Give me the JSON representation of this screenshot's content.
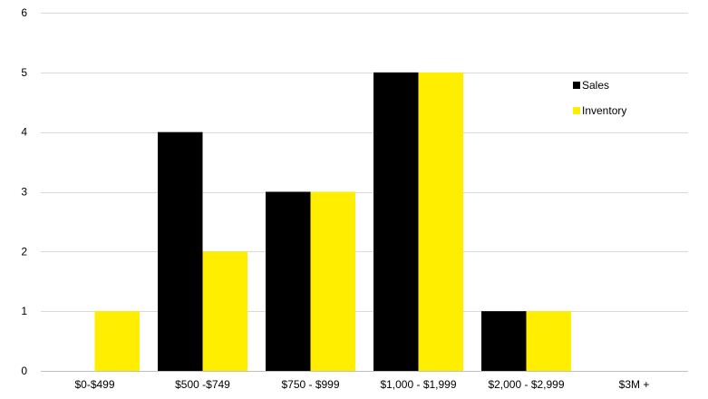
{
  "chart_data": {
    "type": "bar",
    "categories": [
      "$0-$499",
      "$500 -$749",
      "$750 - $999",
      "$1,000 - $1,999",
      "$2,000 - $2,999",
      "$3M +"
    ],
    "series": [
      {
        "name": "Sales",
        "color": "#000000",
        "values": [
          0,
          4,
          3,
          5,
          1,
          0
        ]
      },
      {
        "name": "Inventory",
        "color": "#ffee00",
        "values": [
          1,
          2,
          3,
          5,
          1,
          0
        ]
      }
    ],
    "title": "",
    "xlabel": "",
    "ylabel": "",
    "ylim": [
      0,
      6
    ],
    "yticks": [
      0,
      1,
      2,
      3,
      4,
      5,
      6
    ],
    "grid": true,
    "legend_position": "top-right"
  }
}
